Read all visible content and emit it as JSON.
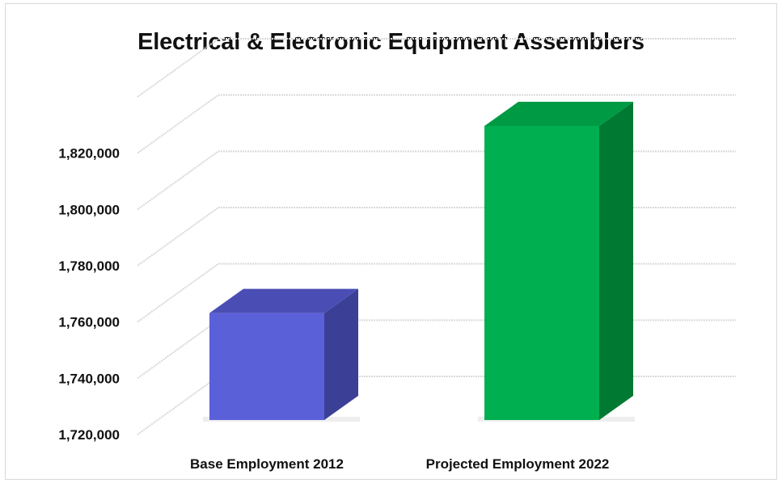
{
  "chart_data": {
    "type": "bar",
    "title": "Electrical & Electronic Equipment Assemblers",
    "categories": [
      "Base Employment 2012",
      "Projected Employment 2022"
    ],
    "values": [
      1758000,
      1824500
    ],
    "ylim": [
      1720000,
      1840000
    ],
    "yticks": [
      1720000,
      1740000,
      1760000,
      1780000,
      1800000,
      1820000
    ],
    "ytick_labels": [
      "1,720,000",
      "1,740,000",
      "1,760,000",
      "1,780,000",
      "1,800,000",
      "1,820,000"
    ],
    "grid": true,
    "legend": "none",
    "style": "3d-column",
    "colors": {
      "bar_1_front": "#5a60d8",
      "bar_1_side": "#3c3f96",
      "bar_1_top": "#4a4eb4",
      "bar_2_front": "#00b050",
      "bar_2_side": "#007a33",
      "bar_2_top": "#009a45",
      "gridline": "#d9d9d9"
    }
  }
}
